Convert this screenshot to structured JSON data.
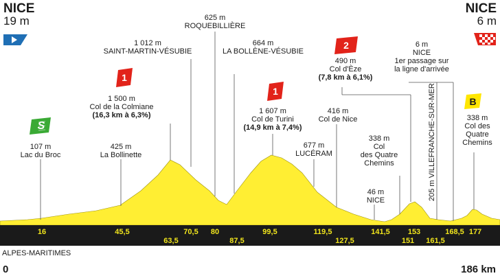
{
  "start": {
    "city": "NICE",
    "elevation": "19 m"
  },
  "finish": {
    "city": "NICE",
    "elevation": "6 m"
  },
  "region": "ALPES-MARITIMES",
  "distance_start": "0",
  "distance_end": "186 km",
  "colors": {
    "profile_fill": "#ffee33",
    "road": "#1a1a1a",
    "km_text": "#f1e51c",
    "sprint": "#3aaa35",
    "climb_cat": "#e2231a",
    "bonus": "#ffe600",
    "start_flag": "#1f6fb5"
  },
  "annotations": {
    "lac_du_broc": [
      "107 m",
      "Lac du Broc"
    ],
    "la_bollinette": [
      "425 m",
      "La Bollinette"
    ],
    "colmiane": [
      "1 500 m",
      "Col de la Colmiane",
      "(16,3 km à 6,3%)"
    ],
    "saint_martin": [
      "1 012 m",
      "SAINT-MARTIN-VÉSUBIE"
    ],
    "roquebilliere": [
      "625 m",
      "ROQUEBILLIÈRE"
    ],
    "bollene": [
      "664 m",
      "LA BOLLÈNE-VÉSUBIE"
    ],
    "turini": [
      "1 607 m",
      "Col de Turini",
      "(14,9 km à 7,4%)"
    ],
    "luceram": [
      "677 m",
      "LUCÉRAM"
    ],
    "col_de_nice": [
      "416 m",
      "Col de Nice"
    ],
    "eze": [
      "490 m",
      "Col d'Èze",
      "(7,8 km à 6,1%)"
    ],
    "quatre_chemins_1": [
      "338 m",
      "Col",
      "des Quatre",
      "Chemins"
    ],
    "nice_46": [
      "46 m",
      "NICE"
    ],
    "nice_6": [
      "6 m",
      "NICE",
      "1er passage sur",
      "la ligne d'arrivée"
    ],
    "villefranche": "205 m  VILLEFRANCHE-SUR-MER",
    "quatre_chemins_2": [
      "338 m",
      "Col des",
      "Quatre",
      "Chemins"
    ]
  },
  "markers": {
    "sprint": "S",
    "cat1_a": "1",
    "cat1_b": "1",
    "cat2": "2",
    "bonus": "B"
  },
  "km_labels": {
    "top": [
      "16",
      "45,5",
      "70,5",
      "80",
      "99,5",
      "119,5",
      "141,5",
      "153",
      "168,5",
      "177"
    ],
    "bottom": [
      "63,5",
      "87,5",
      "127,5",
      "151",
      "161,5"
    ]
  }
}
